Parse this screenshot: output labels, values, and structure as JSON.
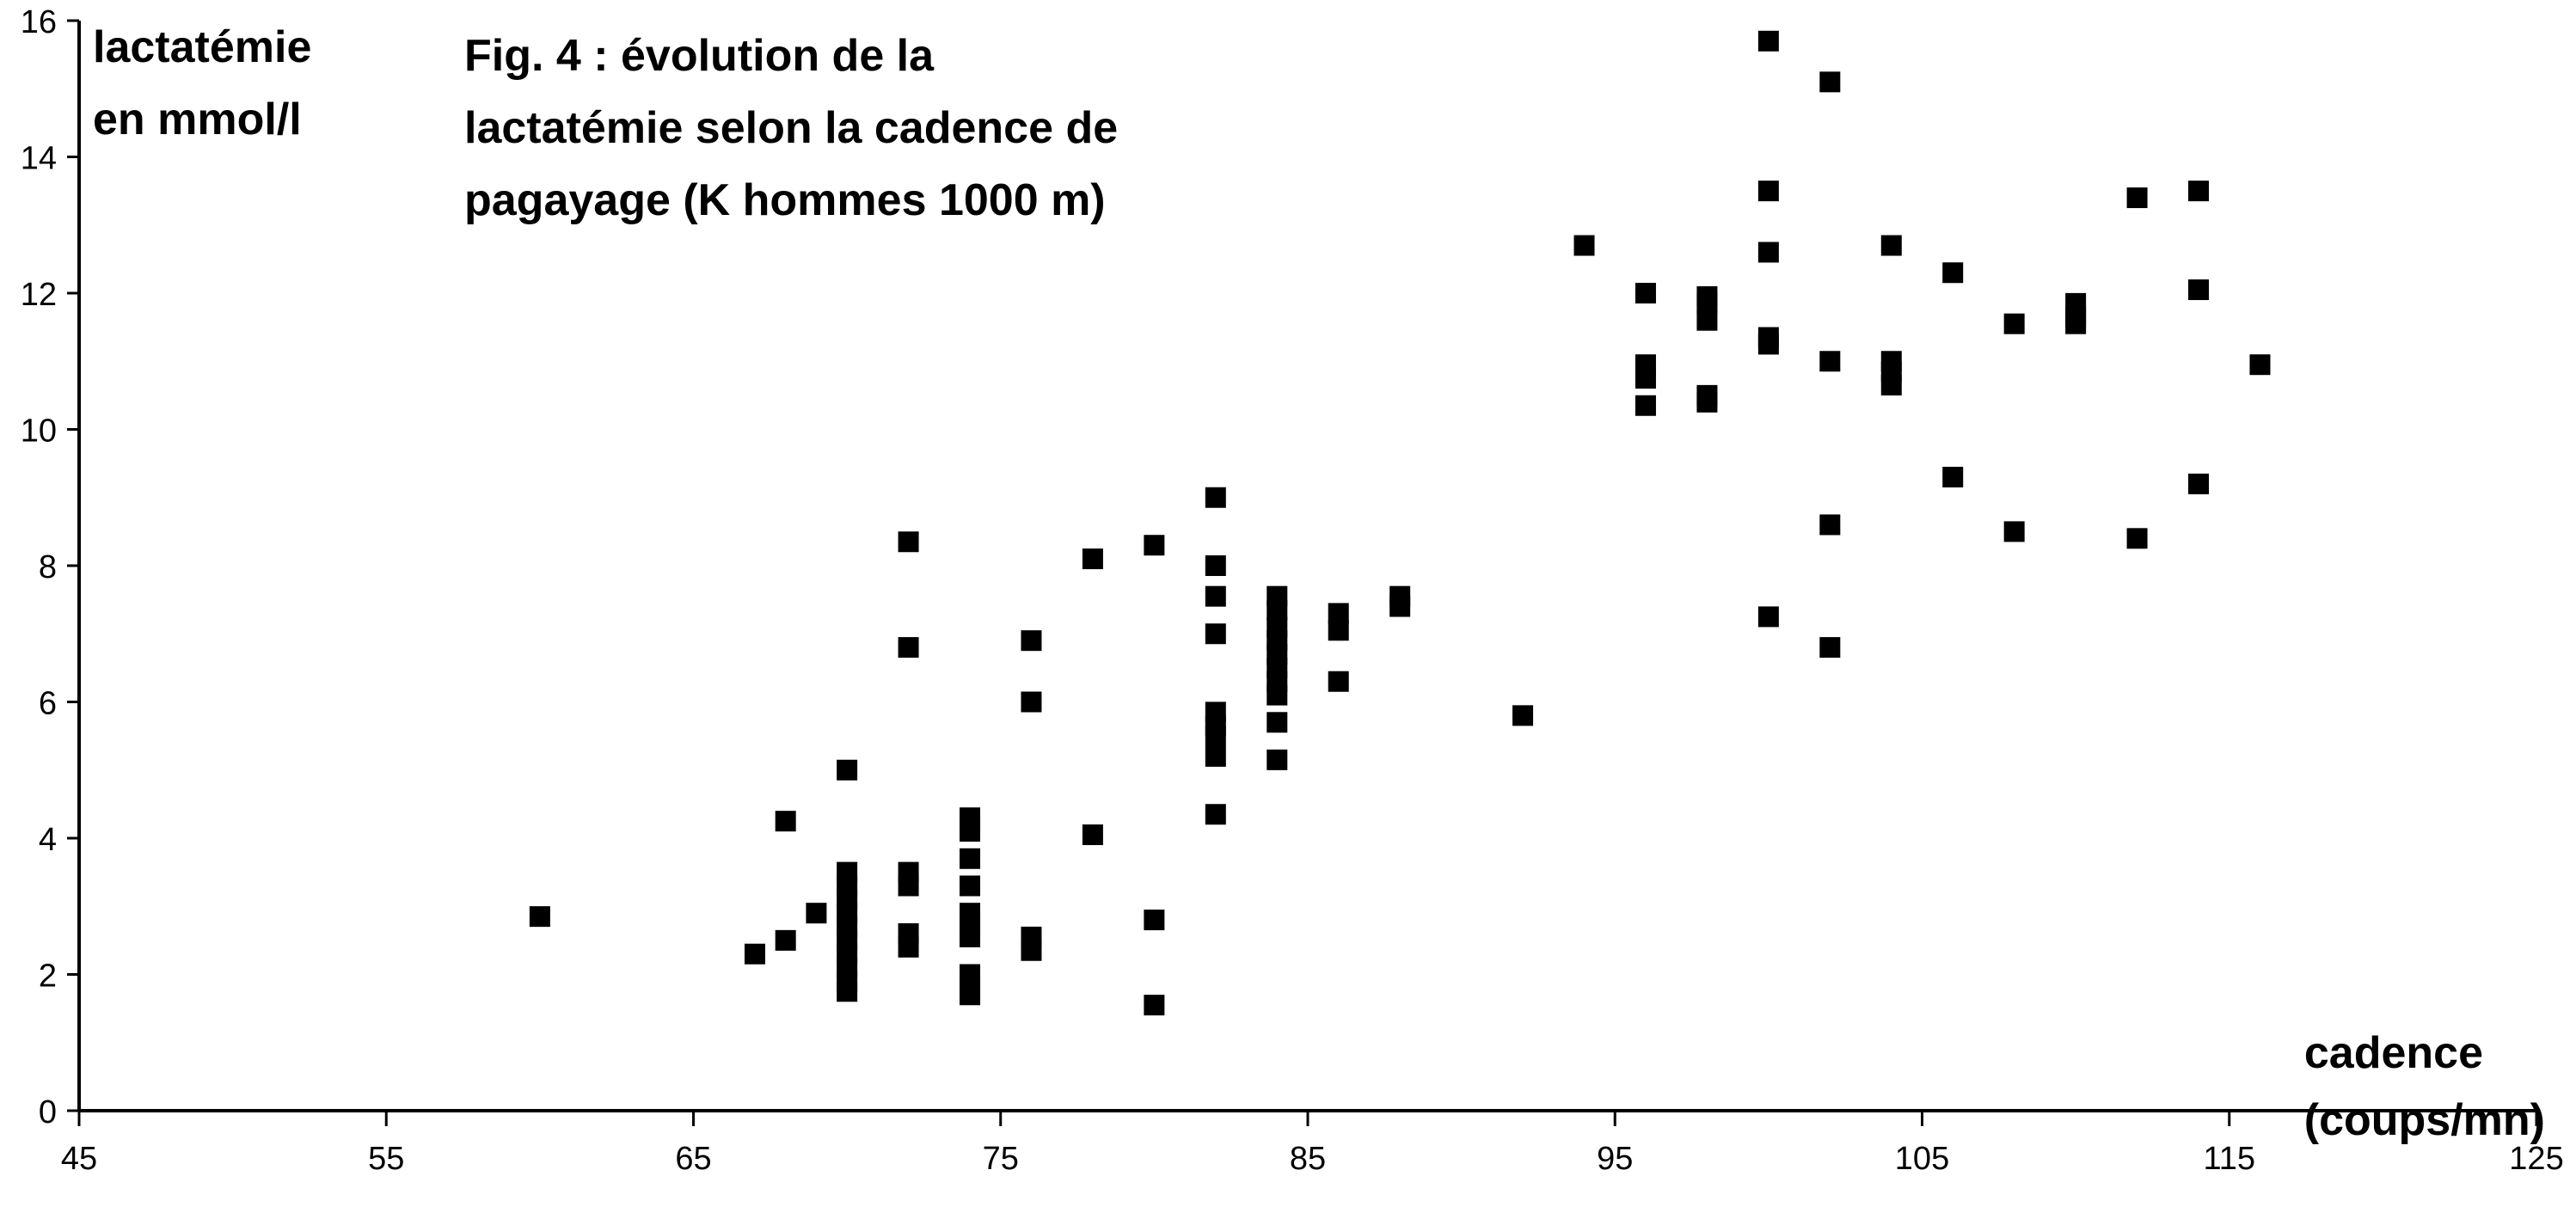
{
  "chart_data": {
    "type": "scatter",
    "title_lines": [
      "Fig. 4 : évolution de la",
      "lactatémie selon la cadence de",
      "pagayage (K hommes 1000 m)"
    ],
    "ylabel_lines": [
      "lactatémie",
      "en mmol/l"
    ],
    "xlabel_lines": [
      "cadence",
      "(coups/mn)"
    ],
    "xlim": [
      45,
      125
    ],
    "ylim": [
      0,
      16
    ],
    "x_ticks": [
      45,
      55,
      65,
      75,
      85,
      95,
      105,
      115,
      125
    ],
    "y_ticks": [
      0,
      2,
      4,
      6,
      8,
      10,
      12,
      14,
      16
    ],
    "x_tick_labels": [
      "45",
      "55",
      "65",
      "75",
      "85",
      "95",
      "105",
      "115",
      "125"
    ],
    "y_tick_labels": [
      "0",
      "2",
      "4",
      "6",
      "8",
      "10",
      "12",
      "14",
      "16"
    ],
    "grid": false,
    "points": [
      [
        60,
        2.85
      ],
      [
        67,
        2.3
      ],
      [
        68,
        4.25
      ],
      [
        68,
        2.5
      ],
      [
        69,
        2.9
      ],
      [
        70,
        5.0
      ],
      [
        70,
        3.5
      ],
      [
        70,
        3.3
      ],
      [
        70,
        3.1
      ],
      [
        70,
        2.9
      ],
      [
        70,
        2.7
      ],
      [
        70,
        2.5
      ],
      [
        70,
        2.3
      ],
      [
        70,
        2.1
      ],
      [
        70,
        1.9
      ],
      [
        70,
        1.75
      ],
      [
        72,
        8.35
      ],
      [
        72,
        6.8
      ],
      [
        72,
        3.5
      ],
      [
        72,
        3.3
      ],
      [
        72,
        2.6
      ],
      [
        72,
        2.4
      ],
      [
        74,
        4.3
      ],
      [
        74,
        4.1
      ],
      [
        74,
        3.7
      ],
      [
        74,
        3.3
      ],
      [
        74,
        2.9
      ],
      [
        74,
        2.7
      ],
      [
        74,
        2.55
      ],
      [
        74,
        2.0
      ],
      [
        74,
        1.85
      ],
      [
        74,
        1.7
      ],
      [
        76,
        6.9
      ],
      [
        76,
        6.0
      ],
      [
        76,
        2.55
      ],
      [
        76,
        2.35
      ],
      [
        78,
        8.1
      ],
      [
        78,
        4.05
      ],
      [
        80,
        8.3
      ],
      [
        80,
        2.8
      ],
      [
        80,
        1.55
      ],
      [
        82,
        9.0
      ],
      [
        82,
        8.0
      ],
      [
        82,
        7.55
      ],
      [
        82,
        7.0
      ],
      [
        82,
        5.85
      ],
      [
        82,
        5.65
      ],
      [
        82,
        5.5
      ],
      [
        82,
        5.2
      ],
      [
        82,
        4.35
      ],
      [
        84,
        7.55
      ],
      [
        84,
        7.35
      ],
      [
        84,
        7.1
      ],
      [
        84,
        6.9
      ],
      [
        84,
        6.7
      ],
      [
        84,
        6.5
      ],
      [
        84,
        6.3
      ],
      [
        84,
        6.1
      ],
      [
        84,
        5.7
      ],
      [
        84,
        5.15
      ],
      [
        86,
        7.3
      ],
      [
        86,
        7.05
      ],
      [
        86,
        6.3
      ],
      [
        88,
        7.55
      ],
      [
        88,
        7.4
      ],
      [
        92,
        5.8
      ],
      [
        94,
        12.7
      ],
      [
        96,
        12.0
      ],
      [
        96,
        10.95
      ],
      [
        96,
        10.75
      ],
      [
        96,
        10.35
      ],
      [
        98,
        11.95
      ],
      [
        98,
        11.85
      ],
      [
        98,
        11.6
      ],
      [
        98,
        10.5
      ],
      [
        98,
        10.4
      ],
      [
        100,
        15.7
      ],
      [
        100,
        13.5
      ],
      [
        100,
        12.6
      ],
      [
        100,
        11.35
      ],
      [
        100,
        11.25
      ],
      [
        100,
        7.25
      ],
      [
        102,
        15.1
      ],
      [
        102,
        11.0
      ],
      [
        102,
        8.6
      ],
      [
        102,
        6.8
      ],
      [
        104,
        12.7
      ],
      [
        104,
        11.0
      ],
      [
        104,
        10.85
      ],
      [
        104,
        10.65
      ],
      [
        106,
        12.3
      ],
      [
        106,
        9.3
      ],
      [
        108,
        11.55
      ],
      [
        108,
        8.5
      ],
      [
        110,
        11.85
      ],
      [
        110,
        11.65
      ],
      [
        110,
        11.55
      ],
      [
        112,
        13.4
      ],
      [
        112,
        8.4
      ],
      [
        114,
        13.5
      ],
      [
        114,
        12.05
      ],
      [
        114,
        9.2
      ],
      [
        116,
        10.95
      ]
    ]
  }
}
